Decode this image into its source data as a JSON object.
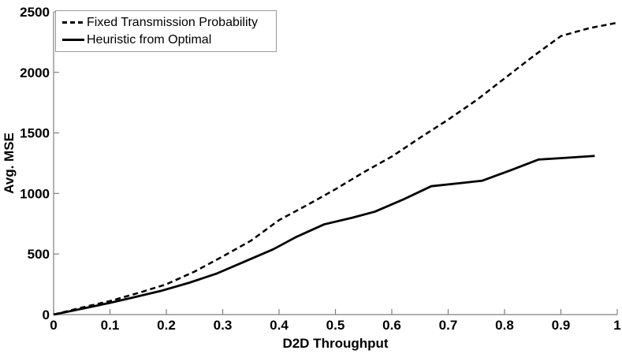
{
  "figure": {
    "background": "#ffffff",
    "axis_color": "#808080",
    "line_color": "#000000",
    "text_color": "#000000"
  },
  "chart_data": {
    "type": "line",
    "title": "",
    "xlabel": "D2D Throughput",
    "ylabel": "Avg. MSE",
    "xlim": [
      0,
      1
    ],
    "ylim": [
      0,
      2500
    ],
    "grid": false,
    "legend_position": "top-left",
    "x_ticks": [
      "0",
      "0.1",
      "0.2",
      "0.3",
      "0.4",
      "0.5",
      "0.6",
      "0.7",
      "0.8",
      "0.9",
      "1"
    ],
    "y_ticks": [
      "0",
      "500",
      "1000",
      "1500",
      "2000",
      "2500"
    ],
    "series": [
      {
        "name": "Fixed Transmission Probability",
        "style": "dashed",
        "x": [
          0,
          0.05,
          0.1,
          0.15,
          0.2,
          0.25,
          0.3,
          0.35,
          0.4,
          0.45,
          0.5,
          0.55,
          0.6,
          0.65,
          0.7,
          0.75,
          0.8,
          0.85,
          0.9,
          0.95,
          1.0
        ],
        "y": [
          0,
          58,
          112,
          178,
          250,
          355,
          480,
          610,
          780,
          905,
          1035,
          1175,
          1305,
          1460,
          1610,
          1770,
          1950,
          2130,
          2300,
          2365,
          2410
        ]
      },
      {
        "name": "Heuristic from Optimal",
        "style": "solid",
        "x": [
          0,
          0.05,
          0.1,
          0.14,
          0.19,
          0.24,
          0.29,
          0.34,
          0.39,
          0.43,
          0.48,
          0.53,
          0.57,
          0.62,
          0.67,
          0.72,
          0.76,
          0.81,
          0.86,
          0.91,
          0.96
        ],
        "y": [
          0,
          48,
          97,
          140,
          195,
          262,
          340,
          440,
          540,
          640,
          745,
          800,
          850,
          950,
          1060,
          1085,
          1105,
          1190,
          1280,
          1295,
          1310
        ]
      }
    ]
  }
}
